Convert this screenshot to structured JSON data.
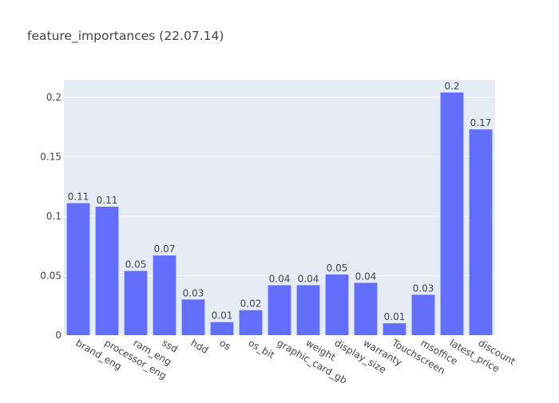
{
  "chart_data": {
    "type": "bar",
    "title": "feature_importances (22.07.14)",
    "xlabel": "",
    "ylabel": "",
    "categories": [
      "brand_eng",
      "processor_eng",
      "ram_eng",
      "ssd",
      "hdd",
      "os",
      "os_bit",
      "graphic_card_gb",
      "weight",
      "display_size",
      "warranty",
      "Touchscreen",
      "msoffice",
      "latest_price",
      "discount"
    ],
    "values": [
      0.111,
      0.108,
      0.054,
      0.067,
      0.03,
      0.011,
      0.021,
      0.042,
      0.042,
      0.051,
      0.044,
      0.01,
      0.034,
      0.204,
      0.173
    ],
    "data_labels": [
      "0.11",
      "0.11",
      "0.05",
      "0.07",
      "0.03",
      "0.01",
      "0.02",
      "0.04",
      "0.04",
      "0.05",
      "0.04",
      "0.01",
      "0.03",
      "0.2",
      "0.17"
    ],
    "yticks": [
      0,
      0.05,
      0.1,
      0.15,
      0.2
    ],
    "ytick_labels": [
      "0",
      "0.05",
      "0.1",
      "0.15",
      "0.2"
    ],
    "ylim": [
      0,
      0.2147
    ],
    "grid": true,
    "colors": {
      "bar": "#636efa",
      "plot_bg": "#e5ecf6",
      "grid": "#ffffff",
      "text": "#444444"
    }
  }
}
